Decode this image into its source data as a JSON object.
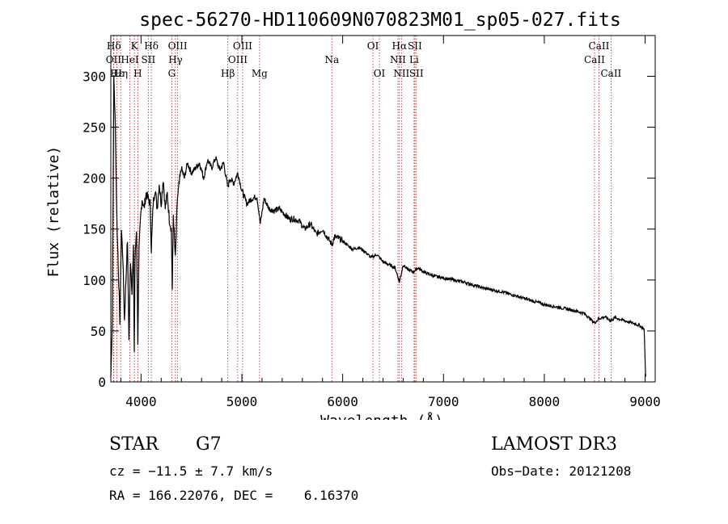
{
  "chart_data": {
    "type": "line",
    "title": "spec-56270-HD110609N070823M01_sp05-027.fits",
    "xlabel": "Wavelength (Å)",
    "ylabel": "Flux (relative)",
    "xlim": [
      3700,
      9100
    ],
    "ylim": [
      0,
      340
    ],
    "x_ticks": [
      4000,
      5000,
      6000,
      7000,
      8000,
      9000
    ],
    "y_ticks": [
      0,
      50,
      100,
      150,
      200,
      250,
      300
    ],
    "x_tick_labels": [
      "4000",
      "5000",
      "6000",
      "7000",
      "8000",
      "9000"
    ],
    "y_tick_labels": [
      "0",
      "50",
      "100",
      "150",
      "200",
      "250",
      "300"
    ],
    "series": [
      {
        "name": "flux",
        "x": [
          3700,
          3715,
          3730,
          3745,
          3760,
          3775,
          3790,
          3805,
          3820,
          3835,
          3850,
          3865,
          3880,
          3895,
          3910,
          3925,
          3933,
          3940,
          3955,
          3968,
          3980,
          3995,
          4010,
          4030,
          4050,
          4070,
          4090,
          4102,
          4120,
          4140,
          4160,
          4180,
          4200,
          4220,
          4240,
          4260,
          4280,
          4300,
          4310,
          4320,
          4340,
          4360,
          4380,
          4400,
          4430,
          4460,
          4500,
          4540,
          4580,
          4620,
          4660,
          4700,
          4740,
          4780,
          4820,
          4861,
          4880,
          4920,
          4960,
          5000,
          5050,
          5100,
          5150,
          5183,
          5220,
          5270,
          5320,
          5370,
          5420,
          5470,
          5520,
          5570,
          5620,
          5680,
          5740,
          5800,
          5860,
          5893,
          5920,
          5980,
          6040,
          6100,
          6160,
          6220,
          6280,
          6340,
          6400,
          6460,
          6520,
          6563,
          6600,
          6650,
          6700,
          6750,
          6800,
          6900,
          7000,
          7100,
          7200,
          7300,
          7400,
          7500,
          7600,
          7700,
          7800,
          7900,
          8000,
          8100,
          8200,
          8300,
          8400,
          8498,
          8542,
          8600,
          8662,
          8700,
          8800,
          8900,
          8950,
          8990,
          9005
        ],
        "y": [
          5,
          60,
          300,
          250,
          160,
          110,
          60,
          150,
          120,
          60,
          100,
          140,
          40,
          120,
          90,
          130,
          30,
          120,
          150,
          40,
          130,
          160,
          180,
          170,
          185,
          180,
          175,
          130,
          175,
          190,
          170,
          195,
          175,
          200,
          170,
          185,
          160,
          150,
          90,
          165,
          120,
          180,
          195,
          210,
          200,
          215,
          205,
          210,
          215,
          200,
          218,
          210,
          220,
          208,
          215,
          190,
          200,
          195,
          205,
          188,
          175,
          180,
          182,
          155,
          180,
          170,
          168,
          170,
          165,
          160,
          160,
          158,
          150,
          155,
          145,
          150,
          140,
          135,
          142,
          140,
          135,
          130,
          132,
          128,
          122,
          125,
          118,
          115,
          112,
          98,
          115,
          110,
          108,
          112,
          108,
          104,
          102,
          100,
          98,
          95,
          92,
          90,
          88,
          85,
          82,
          79,
          76,
          74,
          72,
          70,
          67,
          58,
          62,
          64,
          60,
          63,
          60,
          57,
          55,
          52,
          5
        ]
      }
    ],
    "lines": [
      {
        "label": "Hδ",
        "wavelength": 3730,
        "row": 1
      },
      {
        "label": "OII",
        "wavelength": 3727,
        "row": 2
      },
      {
        "label": "Hε",
        "wavelength": 3760,
        "row": 3
      },
      {
        "label": "Hη",
        "wavelength": 3798,
        "row": 3
      },
      {
        "label": "K",
        "wavelength": 3934,
        "row": 1
      },
      {
        "label": "HeI",
        "wavelength": 3889,
        "row": 2
      },
      {
        "label": "H",
        "wavelength": 3968,
        "row": 3
      },
      {
        "label": "SII",
        "wavelength": 4072,
        "row": 2
      },
      {
        "label": "Hδ",
        "wavelength": 4102,
        "row": 1
      },
      {
        "label": "OIII",
        "wavelength": 4363,
        "row": 1
      },
      {
        "label": "Hγ",
        "wavelength": 4341,
        "row": 2
      },
      {
        "label": "G",
        "wavelength": 4305,
        "row": 3
      },
      {
        "label": "Hβ",
        "wavelength": 4861,
        "row": 3
      },
      {
        "label": "OIII",
        "wavelength": 5007,
        "row": 1
      },
      {
        "label": "OIII",
        "wavelength": 4959,
        "row": 2
      },
      {
        "label": "Mg",
        "wavelength": 5175,
        "row": 3
      },
      {
        "label": "Na",
        "wavelength": 5893,
        "row": 2
      },
      {
        "label": "OI",
        "wavelength": 6300,
        "row": 1
      },
      {
        "label": "OI",
        "wavelength": 6364,
        "row": 3
      },
      {
        "label": "Hα",
        "wavelength": 6563,
        "row": 1
      },
      {
        "label": "NII",
        "wavelength": 6548,
        "row": 2
      },
      {
        "label": "NII",
        "wavelength": 6583,
        "row": 3
      },
      {
        "label": "SII",
        "wavelength": 6716,
        "row": 1
      },
      {
        "label": "Li",
        "wavelength": 6708,
        "row": 2
      },
      {
        "label": "SII",
        "wavelength": 6731,
        "row": 3
      },
      {
        "label": "CaII",
        "wavelength": 8542,
        "row": 1
      },
      {
        "label": "CaII",
        "wavelength": 8498,
        "row": 2
      },
      {
        "label": "CaII",
        "wavelength": 8662,
        "row": 3
      }
    ]
  },
  "info": {
    "object_class": "STAR",
    "subclass": "G7",
    "survey": "LAMOST DR3",
    "cz": "cz = −11.5 ± 7.7 km/s",
    "obs_date": "Obs−Date: 20121208",
    "coords": "RA = 166.22076, DEC =    6.16370"
  },
  "colors": {
    "line_marker": "#b22222",
    "spectrum": "#000000",
    "axes": "#000000"
  }
}
